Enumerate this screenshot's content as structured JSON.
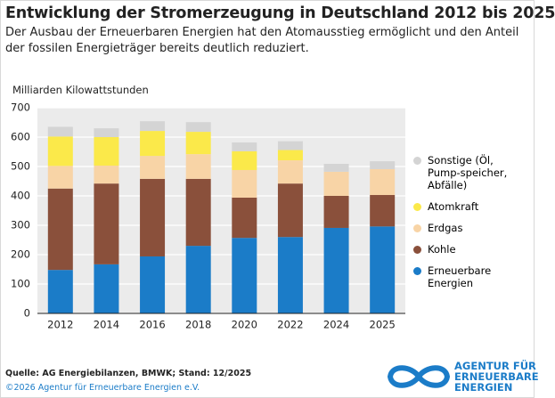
{
  "chart_data": {
    "type": "stacked-bar",
    "title": "Entwicklung der Stromerzeugung in Deutschland 2012 bis 2025",
    "subtitle": [
      "Der Ausbau der Erneuerbaren Energien hat den Atomausstieg ermöglicht und den Anteil",
      "der fossilen Energieträger bereits deutlich reduziert."
    ],
    "y_label": "Milliarden Kilowattstunden",
    "categories": [
      "2012",
      "2014",
      "2016",
      "2018",
      "2020",
      "2022",
      "2024",
      "2025"
    ],
    "series": [
      {
        "name": "Erneuerbare Energien",
        "color": "#1b7cc8",
        "values": [
          148,
          167,
          194,
          230,
          257,
          260,
          291,
          296
        ]
      },
      {
        "name": "Kohle",
        "color": "#8a503b",
        "values": [
          277,
          275,
          264,
          228,
          137,
          182,
          109,
          107
        ]
      },
      {
        "name": "Erdgas",
        "color": "#f8d4a6",
        "values": [
          77,
          61,
          78,
          84,
          94,
          79,
          82,
          88
        ]
      },
      {
        "name": "Atomkraft",
        "color": "#fbe94a",
        "values": [
          100,
          97,
          85,
          76,
          64,
          35,
          0,
          0
        ]
      },
      {
        "name": "Sonstige (Öl, Pump-speicher, Abfälle)",
        "color": "#d4d4d4",
        "values": [
          33,
          30,
          33,
          33,
          30,
          30,
          27,
          27
        ]
      }
    ],
    "ylim": [
      0,
      700
    ],
    "yticks": [
      0,
      100,
      200,
      300,
      400,
      500,
      600,
      700
    ],
    "grid": true,
    "legend": "right",
    "source": "Quelle: AG Energiebilanzen, BMWK; Stand: 12/2025",
    "copyright": "©2026 Agentur für Erneuerbare Energien e.V.",
    "logo_text": [
      "AGENTUR FÜR",
      "ERNEUERBARE",
      "ENERGIEN"
    ]
  }
}
